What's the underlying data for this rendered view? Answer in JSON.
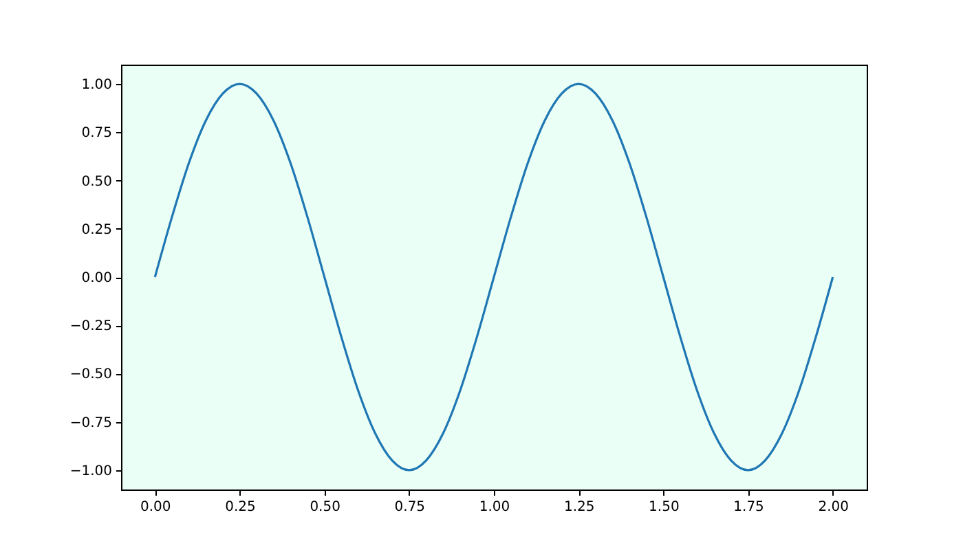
{
  "chart_data": {
    "type": "line",
    "x": [
      0,
      0.05,
      0.1,
      0.15,
      0.2,
      0.25,
      0.3,
      0.35,
      0.4,
      0.45,
      0.5,
      0.55,
      0.6,
      0.65,
      0.7,
      0.75,
      0.8,
      0.85,
      0.9,
      0.95,
      1,
      1.05,
      1.1,
      1.15,
      1.2,
      1.25,
      1.3,
      1.35,
      1.4,
      1.45,
      1.5,
      1.55,
      1.6,
      1.65,
      1.7,
      1.75,
      1.8,
      1.85,
      1.9,
      1.95,
      2
    ],
    "series": [
      {
        "color": "#1f77b4",
        "values": [
          0,
          0.31,
          0.59,
          0.81,
          0.95,
          1,
          0.95,
          0.81,
          0.59,
          0.31,
          0,
          -0.31,
          -0.59,
          -0.81,
          -0.95,
          -1,
          -0.95,
          -0.81,
          -0.59,
          -0.31,
          0,
          0.31,
          0.59,
          0.81,
          0.95,
          1,
          0.95,
          0.81,
          0.59,
          0.31,
          0,
          -0.31,
          -0.59,
          -0.81,
          -0.95,
          -1,
          -0.95,
          -0.81,
          -0.59,
          -0.31,
          0
        ]
      }
    ],
    "xlim": [
      -0.1,
      2.1
    ],
    "ylim": [
      -1.1,
      1.1
    ],
    "xticks": [
      {
        "value": 0,
        "label": "0.00"
      },
      {
        "value": 0.25,
        "label": "0.25"
      },
      {
        "value": 0.5,
        "label": "0.50"
      },
      {
        "value": 0.75,
        "label": "0.75"
      },
      {
        "value": 1,
        "label": "1.00"
      },
      {
        "value": 1.25,
        "label": "1.25"
      },
      {
        "value": 1.5,
        "label": "1.50"
      },
      {
        "value": 1.75,
        "label": "1.75"
      },
      {
        "value": 2,
        "label": "2.00"
      }
    ],
    "yticks": [
      {
        "value": -1,
        "label": "−1.00"
      },
      {
        "value": -0.75,
        "label": "−0.75"
      },
      {
        "value": -0.5,
        "label": "−0.50"
      },
      {
        "value": -0.25,
        "label": "−0.25"
      },
      {
        "value": 0,
        "label": "0.00"
      },
      {
        "value": 0.25,
        "label": "0.25"
      },
      {
        "value": 0.5,
        "label": "0.50"
      },
      {
        "value": 0.75,
        "label": "0.75"
      },
      {
        "value": 1,
        "label": "1.00"
      }
    ],
    "grid": false,
    "marker": "none",
    "line_style": "solid"
  }
}
